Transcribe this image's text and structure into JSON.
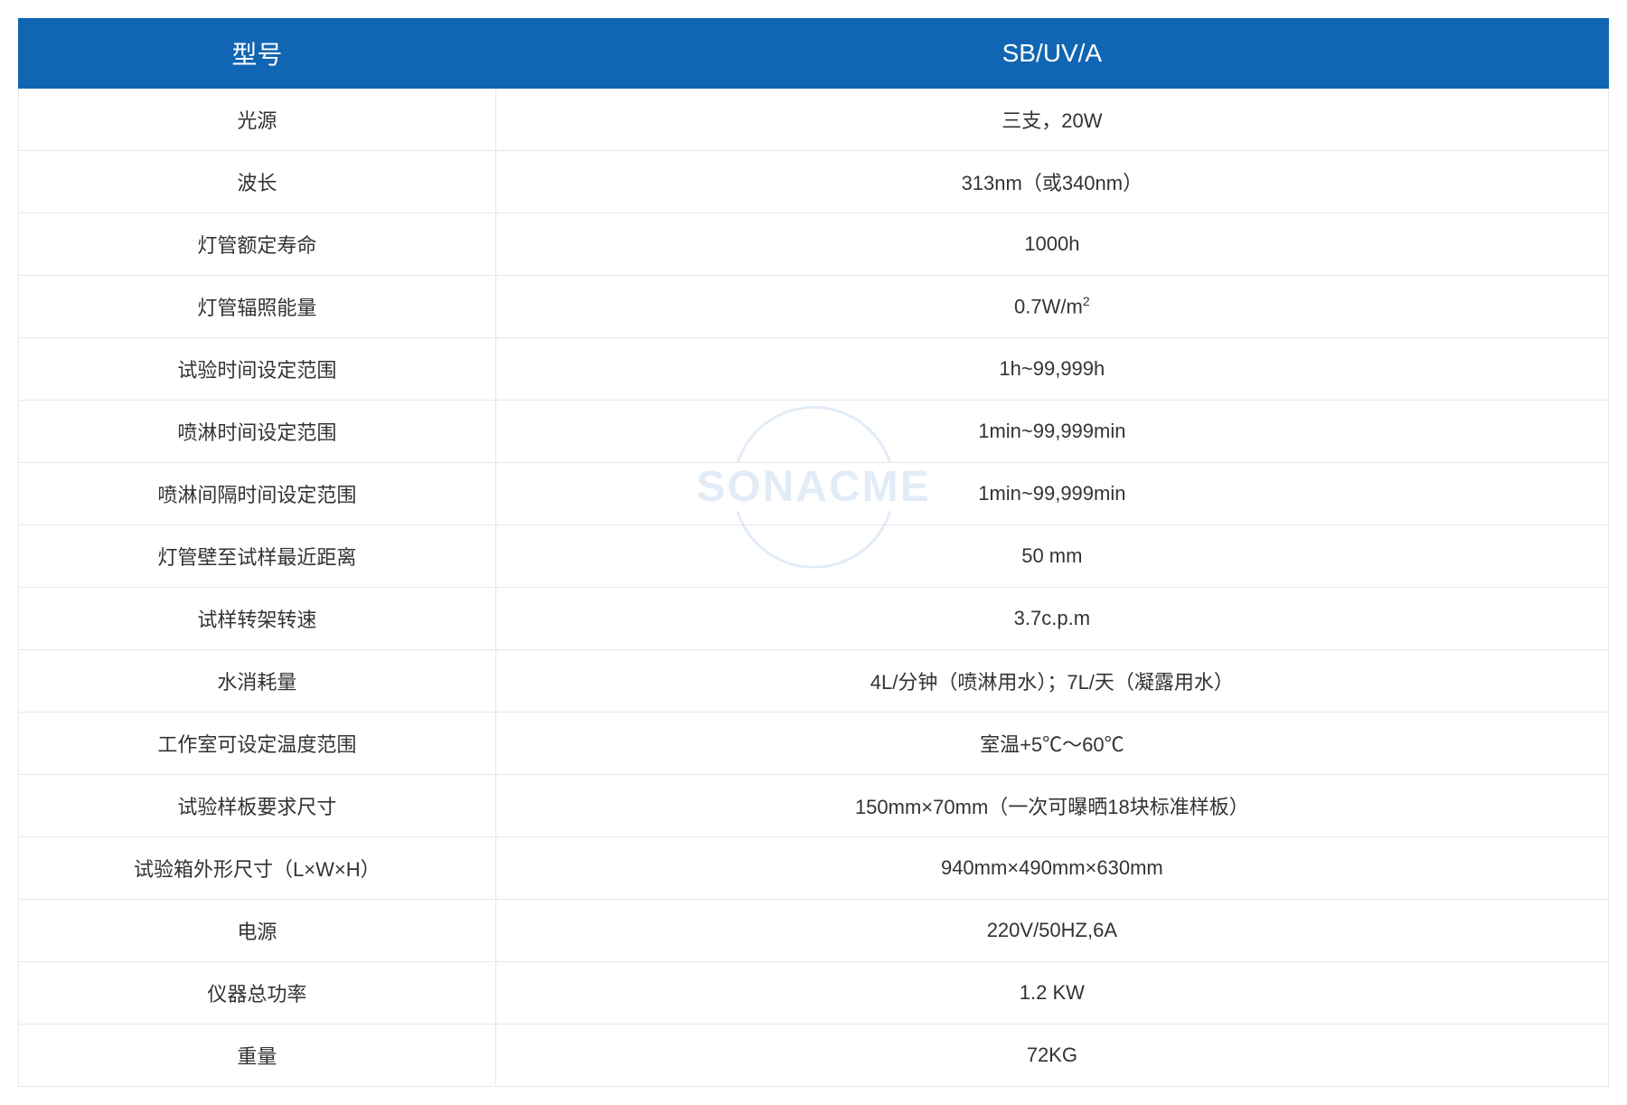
{
  "table": {
    "header_bg_color": "#1166b3",
    "header_text_color": "#ffffff",
    "border_color": "#e8e8e8",
    "text_color": "#333333",
    "header_fontsize": 28,
    "cell_fontsize": 22,
    "columns": [
      "型号",
      "SB/UV/A"
    ],
    "column_widths": [
      "30%",
      "70%"
    ],
    "rows": [
      [
        "光源",
        "三支，20W"
      ],
      [
        "波长",
        "313nm（或340nm）"
      ],
      [
        "灯管额定寿命",
        "1000h"
      ],
      [
        "灯管辐照能量",
        "0.7W/m²"
      ],
      [
        "试验时间设定范围",
        "1h~99,999h"
      ],
      [
        "喷淋时间设定范围",
        "1min~99,999min"
      ],
      [
        "喷淋间隔时间设定范围",
        "1min~99,999min"
      ],
      [
        "灯管壁至试样最近距离",
        "50 mm"
      ],
      [
        "试样转架转速",
        "3.7c.p.m"
      ],
      [
        "水消耗量",
        "4L/分钟（喷淋用水）；7L/天（凝露用水）"
      ],
      [
        "工作室可设定温度范围",
        "室温+5℃～60℃"
      ],
      [
        "试验样板要求尺寸",
        "150mm×70mm（一次可曝晒18块标准样板）"
      ],
      [
        "试验箱外形尺寸（L×W×H）",
        "940mm×490mm×630mm"
      ],
      [
        "电源",
        "220V/50HZ,6A"
      ],
      [
        "仪器总功率",
        "1.2 KW"
      ],
      [
        "重量",
        "72KG"
      ]
    ]
  },
  "watermark": {
    "text": "SONACME",
    "color": "#8bb8e0",
    "opacity": 0.25,
    "fontsize": 48
  }
}
